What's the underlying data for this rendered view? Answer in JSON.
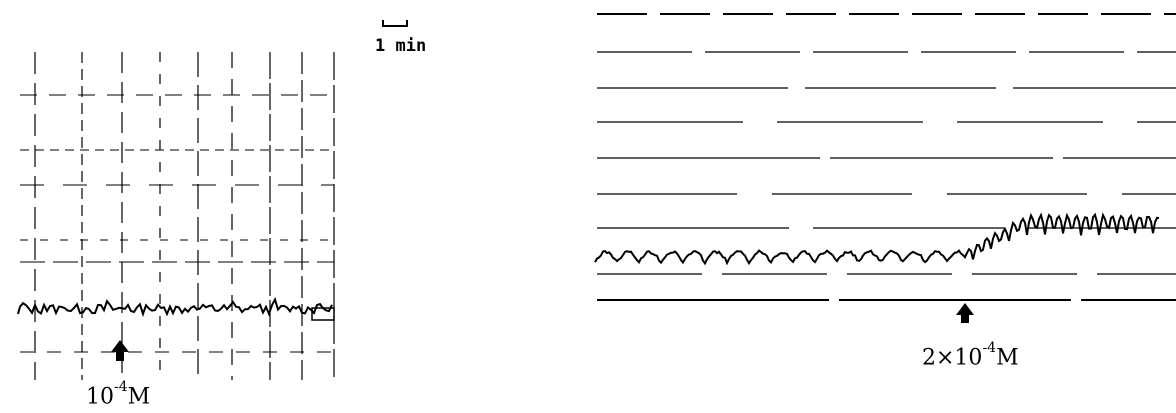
{
  "scale_bar": {
    "label": "1 min"
  },
  "left_panel": {
    "dose": {
      "mantissa": "10",
      "exponent": "-4",
      "unit": "M"
    }
  },
  "right_panel": {
    "dose": {
      "mantissa": "2×10",
      "exponent": "-4",
      "unit": "M"
    }
  },
  "ink_color": "#000000",
  "grid_color": "#000000",
  "arrow_icon": "up-arrow-icon"
}
